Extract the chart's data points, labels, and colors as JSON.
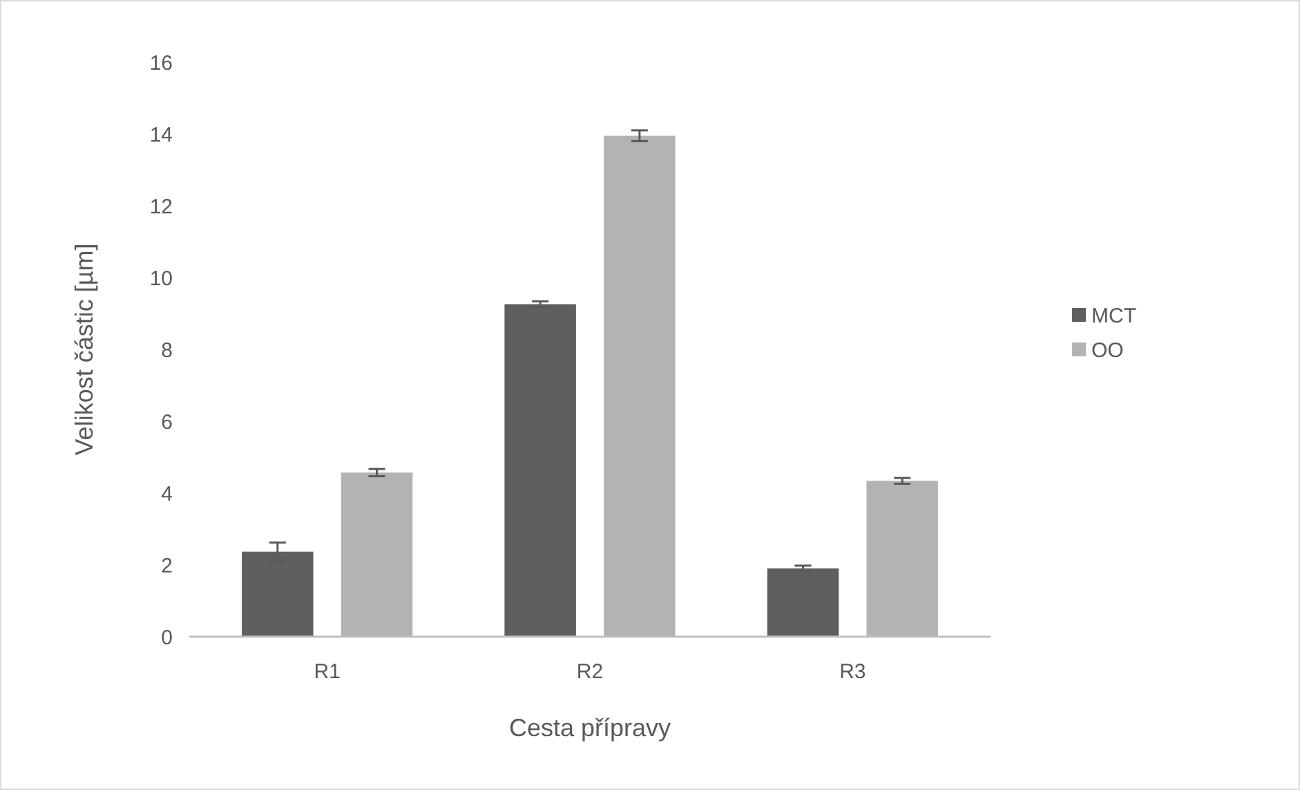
{
  "chart_data": {
    "type": "bar",
    "xlabel": "Cesta přípravy",
    "ylabel": "Velikost částic [µm]",
    "categories": [
      "R1",
      "R2",
      "R3"
    ],
    "series": [
      {
        "name": "MCT",
        "color": "#5f5f5f",
        "values": [
          2.37,
          9.26,
          1.9
        ],
        "errors": [
          0.25,
          0.08,
          0.08
        ]
      },
      {
        "name": "OO",
        "color": "#b3b3b3",
        "values": [
          4.57,
          13.95,
          4.34
        ],
        "errors": [
          0.1,
          0.15,
          0.08
        ]
      }
    ],
    "ylim": [
      0,
      16
    ],
    "yticks": [
      0,
      2,
      4,
      6,
      8,
      10,
      12,
      14,
      16
    ],
    "grid": false,
    "legend": "right"
  }
}
